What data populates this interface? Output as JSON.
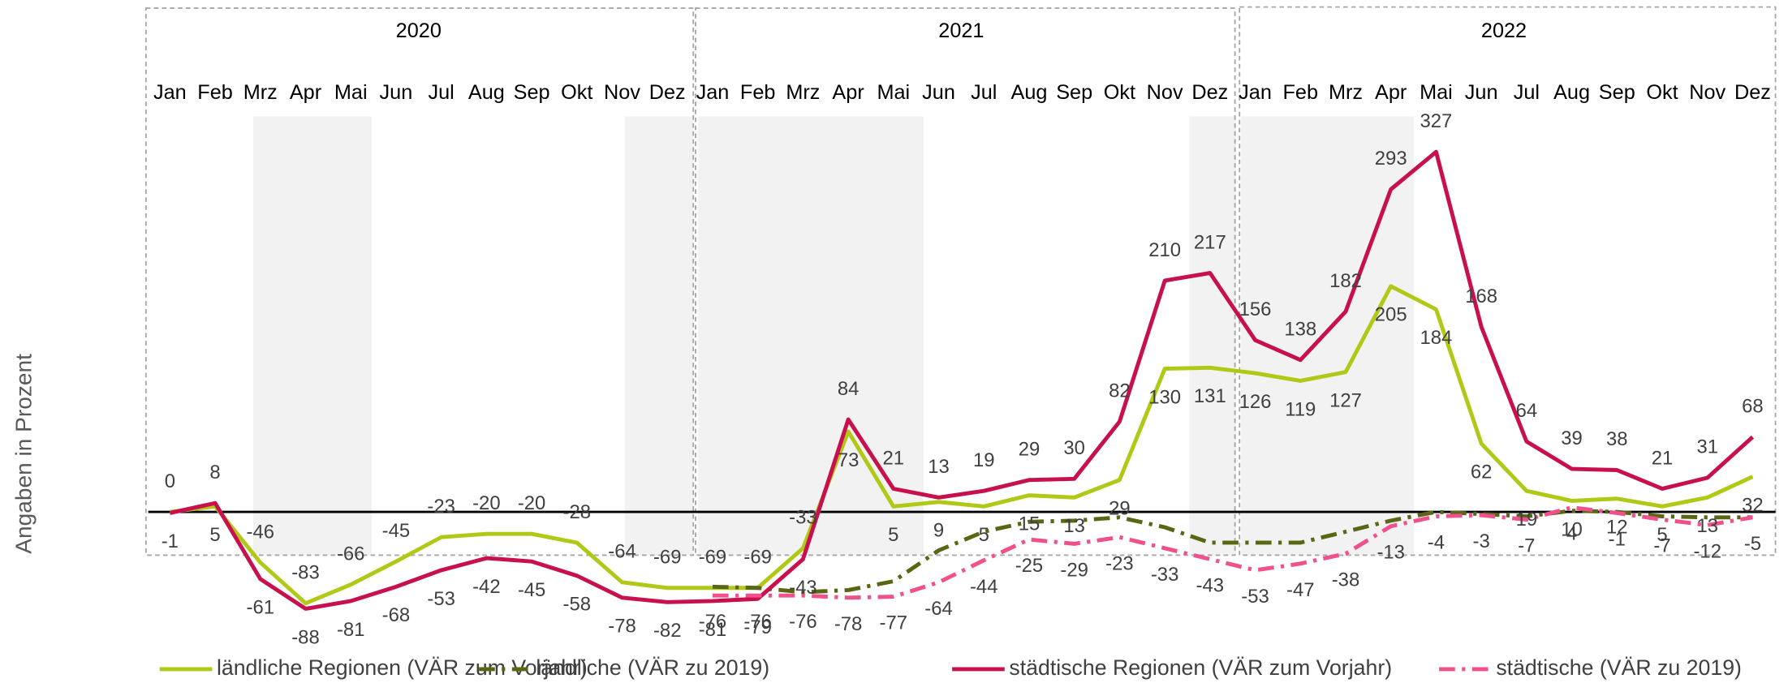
{
  "chart_data": {
    "type": "line",
    "y_label": "Angaben in Prozent",
    "years": [
      "2020",
      "2021",
      "2022"
    ],
    "categories": [
      "Jan",
      "Feb",
      "Mrz",
      "Apr",
      "Mai",
      "Jun",
      "Jul",
      "Aug",
      "Sep",
      "Okt",
      "Nov",
      "Dez",
      "Jan",
      "Feb",
      "Mrz",
      "Apr",
      "Mai",
      "Jun",
      "Jul",
      "Aug",
      "Sep",
      "Okt",
      "Nov",
      "Dez",
      "Jan",
      "Feb",
      "Mrz",
      "Apr",
      "Mai",
      "Jun",
      "Jul",
      "Aug",
      "Sep",
      "Okt",
      "Nov",
      "Dez"
    ],
    "ylim": [
      -100,
      350
    ],
    "series": [
      {
        "name": "ländliche Regionen (VÄR zum Vorjahr)",
        "color": "#b1c817",
        "dash": "solid",
        "data_labels": true,
        "values": [
          0,
          5,
          -46,
          -83,
          -66,
          -45,
          -23,
          -20,
          -20,
          -28,
          -64,
          -69,
          -69,
          -69,
          -33,
          73,
          5,
          9,
          5,
          15,
          13,
          29,
          130,
          131,
          126,
          119,
          127,
          205,
          184,
          62,
          19,
          10,
          12,
          5,
          13,
          32
        ]
      },
      {
        "name": "ländliche (VÄR zu 2019)",
        "color": "#5a6614",
        "dash": "dash-dot",
        "data_labels": false,
        "values": [
          null,
          null,
          null,
          null,
          null,
          null,
          null,
          null,
          null,
          null,
          null,
          null,
          -68,
          -69,
          -73,
          -71,
          -63,
          -35,
          -18,
          -9,
          -8,
          -5,
          -14,
          -28,
          -28,
          -28,
          -18,
          -8,
          0,
          -2,
          -4,
          1,
          0,
          -4,
          -5,
          -5
        ]
      },
      {
        "name": "städtische Regionen (VÄR zum Vorjahr)",
        "color": "#c8104e",
        "dash": "solid",
        "data_labels": true,
        "values": [
          -1,
          8,
          -61,
          -88,
          -81,
          -68,
          -53,
          -42,
          -45,
          -58,
          -78,
          -82,
          -81,
          -79,
          -43,
          84,
          21,
          13,
          19,
          29,
          30,
          82,
          210,
          217,
          156,
          138,
          182,
          293,
          327,
          168,
          64,
          39,
          38,
          21,
          31,
          68
        ]
      },
      {
        "name": "städtische (VÄR zu 2019)",
        "color": "#f0508c",
        "dash": "dash-dot",
        "data_labels": true,
        "values": [
          null,
          null,
          null,
          null,
          null,
          null,
          null,
          null,
          null,
          null,
          null,
          null,
          -76,
          -76,
          -76,
          -78,
          -77,
          -64,
          -44,
          -25,
          -29,
          -23,
          -33,
          -43,
          -53,
          -47,
          -38,
          -13,
          -4,
          -3,
          -7,
          4,
          -1,
          -7,
          -12,
          -5
        ]
      }
    ],
    "zero_line": true
  }
}
